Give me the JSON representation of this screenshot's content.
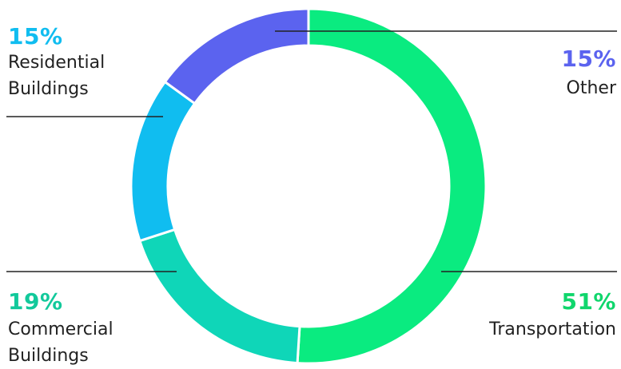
{
  "chart_data": {
    "type": "pie",
    "style": "donut",
    "title": "",
    "slices": [
      {
        "percent_label": "51%",
        "value": 51,
        "label_lines": [
          "Transportation"
        ],
        "color": "#0aeb80"
      },
      {
        "percent_label": "19%",
        "value": 19,
        "label_lines": [
          "Commercial",
          "Buildings"
        ],
        "color": "#0fd6b8"
      },
      {
        "percent_label": "15%",
        "value": 15,
        "label_lines": [
          "Residential",
          "Buildings"
        ],
        "color": "#10bdf0"
      },
      {
        "percent_label": "15%",
        "value": 15,
        "label_lines": [
          "Other"
        ],
        "color": "#5b63ef"
      }
    ],
    "percent_colors": {
      "Transportation": "#10d66c",
      "Commercial Buildings": "#12c99b",
      "Residential Buildings": "#10bdf0",
      "Other": "#5b63ef"
    }
  }
}
